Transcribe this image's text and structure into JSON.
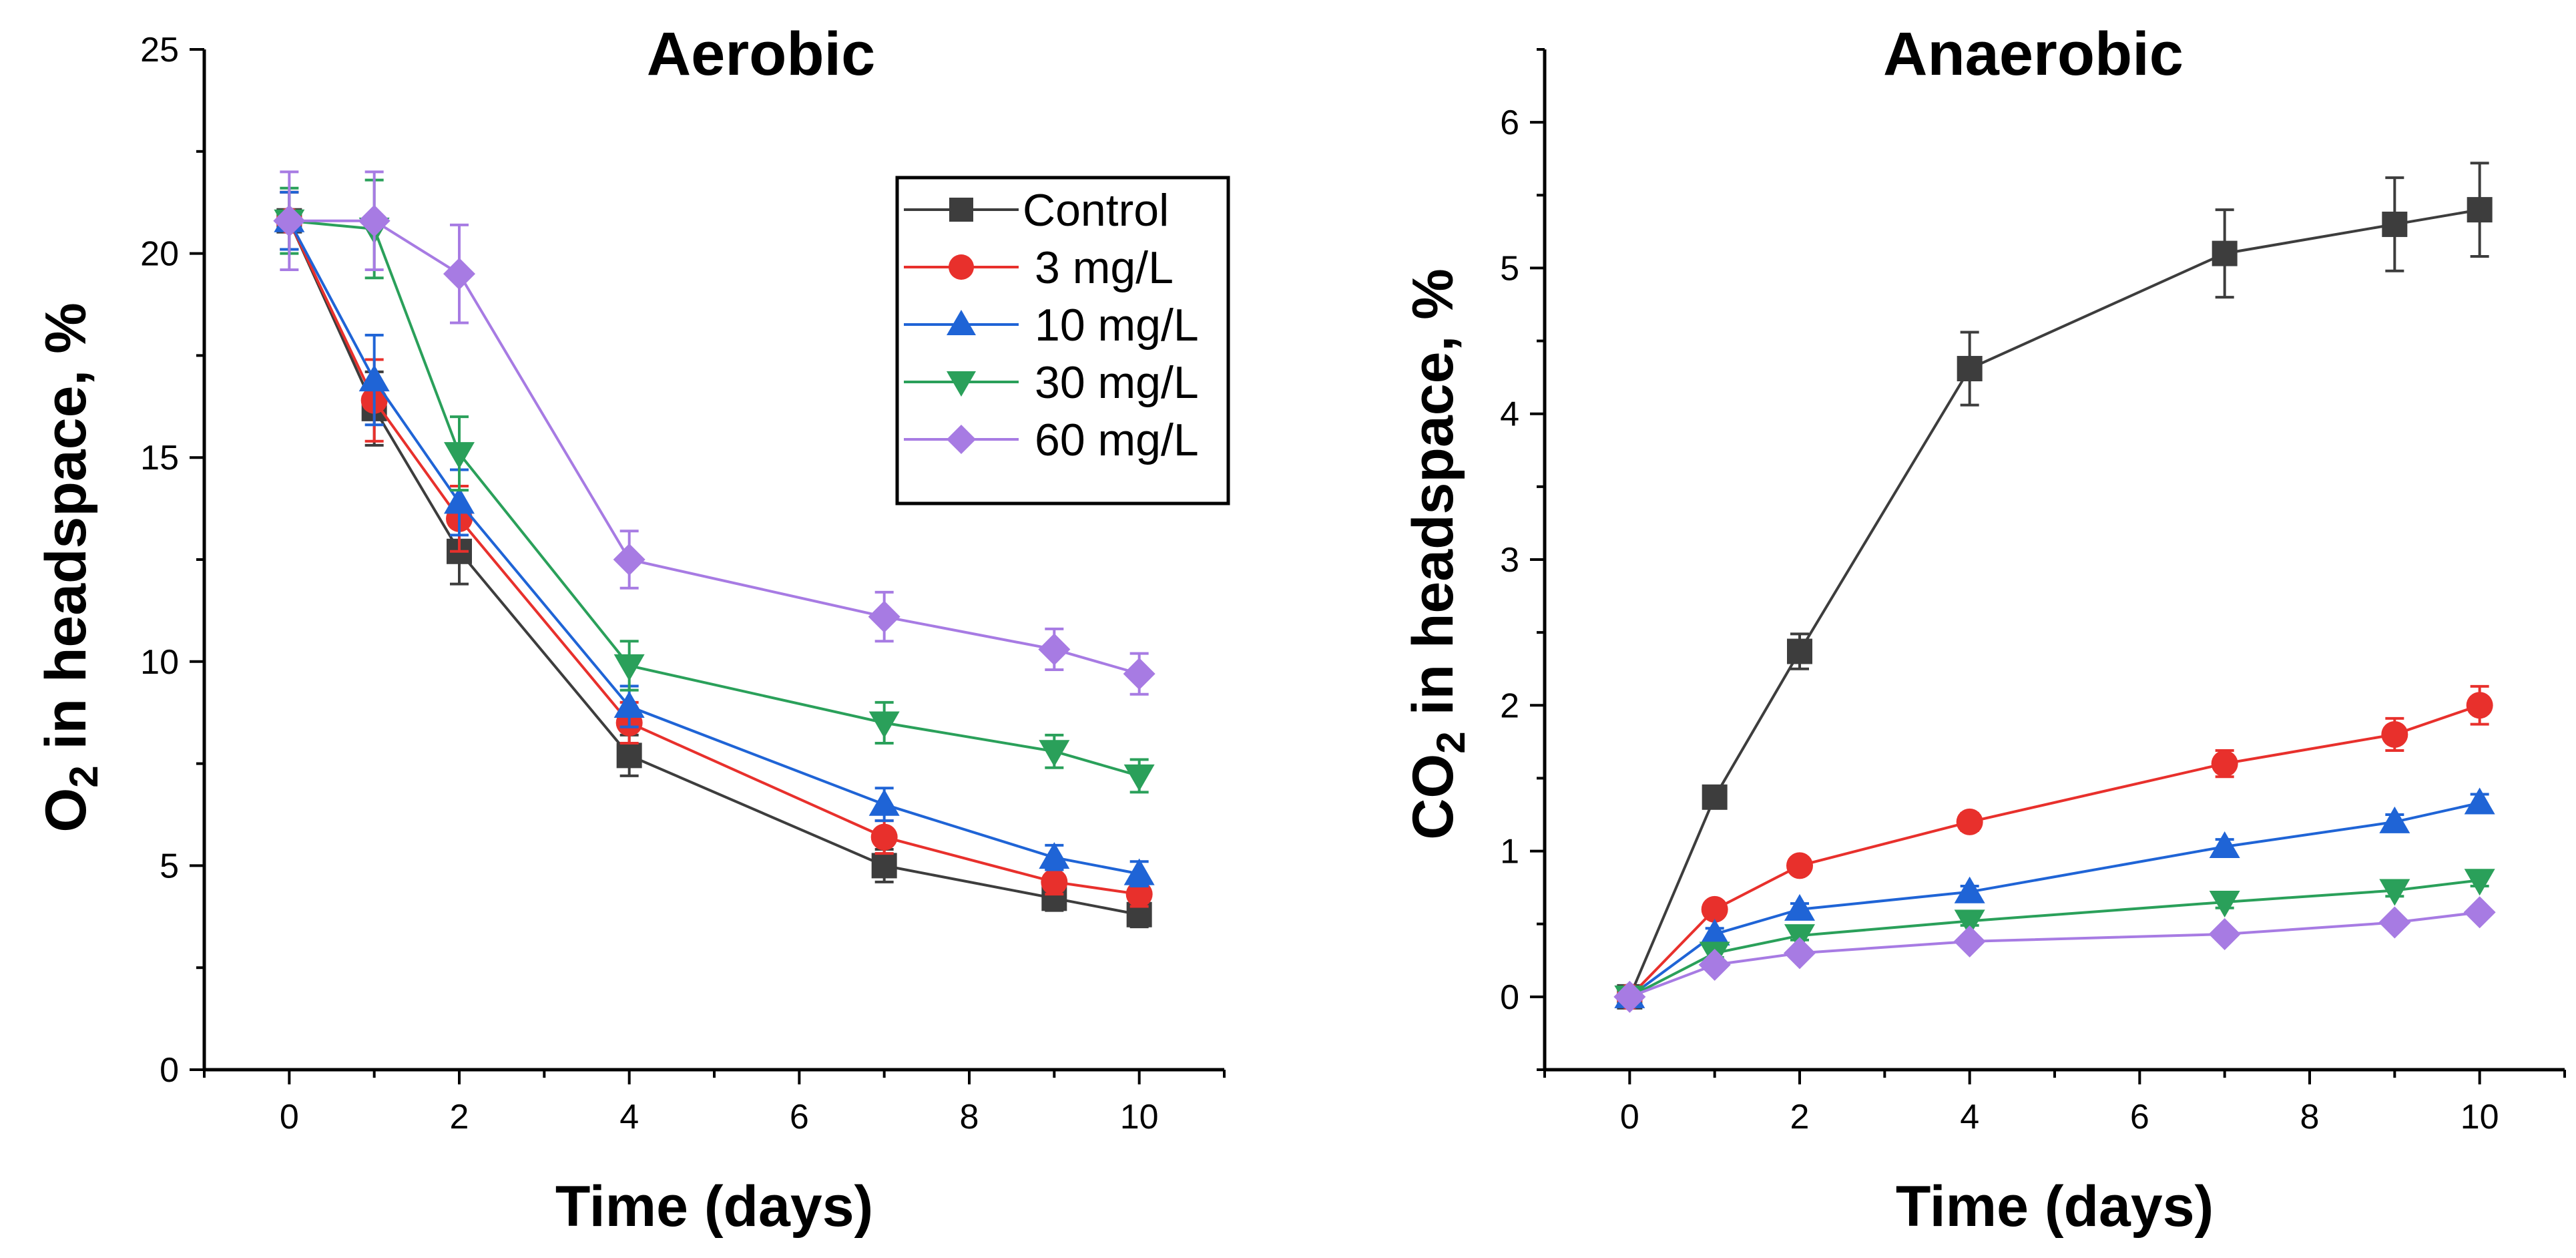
{
  "chart_data": [
    {
      "type": "line",
      "title": "Aerobic",
      "xlabel": "Time (days)",
      "ylabel": {
        "prefix": "O",
        "subscript": "2",
        "suffix": " in headspace, %"
      },
      "xlim": [
        -1,
        11
      ],
      "ylim": [
        0,
        25
      ],
      "xticks": [
        0,
        2,
        4,
        6,
        8,
        10
      ],
      "xtick_labels": [
        "0",
        "2",
        "4",
        "6",
        "8",
        "10"
      ],
      "yticks": [
        0,
        5,
        10,
        15,
        20,
        25
      ],
      "ytick_labels": [
        "0",
        "5",
        "10",
        "15",
        "20",
        "25"
      ],
      "x": [
        0,
        1,
        2,
        4,
        7,
        9,
        10
      ],
      "legend_position": "top-right",
      "series": [
        {
          "name": "Control",
          "color": "#3d3d3d",
          "marker": "square",
          "values": [
            20.8,
            16.2,
            12.7,
            7.7,
            5.0,
            4.2,
            3.8
          ],
          "errors": [
            0.7,
            0.9,
            0.8,
            0.5,
            0.4,
            0.3,
            0.3
          ]
        },
        {
          "name": "3 mg/L",
          "color": "#e8302c",
          "marker": "circle",
          "values": [
            20.8,
            16.4,
            13.5,
            8.5,
            5.7,
            4.6,
            4.3
          ],
          "errors": [
            0.7,
            1.0,
            0.8,
            0.5,
            0.4,
            0.3,
            0.3
          ]
        },
        {
          "name": "10 mg/L",
          "color": "#1f64d6",
          "marker": "triangle-up",
          "values": [
            20.8,
            16.9,
            13.9,
            8.9,
            6.5,
            5.2,
            4.8
          ],
          "errors": [
            0.7,
            1.1,
            0.8,
            0.5,
            0.4,
            0.3,
            0.3
          ]
        },
        {
          "name": "30 mg/L",
          "color": "#2aa05a",
          "marker": "triangle-down",
          "values": [
            20.8,
            20.6,
            15.1,
            9.9,
            8.5,
            7.8,
            7.2
          ],
          "errors": [
            0.8,
            1.2,
            0.9,
            0.6,
            0.5,
            0.4,
            0.4
          ]
        },
        {
          "name": "60 mg/L",
          "color": "#a77be3",
          "marker": "diamond",
          "values": [
            20.8,
            20.8,
            19.5,
            12.5,
            11.1,
            10.3,
            9.7
          ],
          "errors": [
            1.2,
            1.2,
            1.2,
            0.7,
            0.6,
            0.5,
            0.5
          ]
        }
      ]
    },
    {
      "type": "line",
      "title": "Anaerobic",
      "xlabel": "Time (days)",
      "ylabel": {
        "prefix": "CO",
        "subscript": "2",
        "suffix": " in headspace, %"
      },
      "xlim": [
        -1,
        11
      ],
      "ylim": [
        -0.5,
        6.5
      ],
      "xticks": [
        0,
        2,
        4,
        6,
        8,
        10
      ],
      "xtick_labels": [
        "0",
        "2",
        "4",
        "6",
        "8",
        "10"
      ],
      "yticks": [
        0,
        1,
        2,
        3,
        4,
        5,
        6
      ],
      "ytick_labels": [
        "0",
        "1",
        "2",
        "3",
        "4",
        "5",
        "6"
      ],
      "x": [
        0,
        1,
        2,
        4,
        7,
        9,
        10
      ],
      "series": [
        {
          "name": "Control",
          "color": "#3d3d3d",
          "marker": "square",
          "values": [
            0.0,
            1.37,
            2.37,
            4.31,
            5.1,
            5.3,
            5.4
          ],
          "errors": [
            0.03,
            0.06,
            0.12,
            0.25,
            0.3,
            0.32,
            0.32
          ]
        },
        {
          "name": "3 mg/L",
          "color": "#e8302c",
          "marker": "circle",
          "values": [
            0.0,
            0.6,
            0.9,
            1.2,
            1.6,
            1.8,
            2.0
          ],
          "errors": [
            0.03,
            0.04,
            0.05,
            0.06,
            0.09,
            0.11,
            0.13
          ]
        },
        {
          "name": "10 mg/L",
          "color": "#1f64d6",
          "marker": "triangle-up",
          "values": [
            0.0,
            0.43,
            0.6,
            0.72,
            1.03,
            1.2,
            1.33
          ],
          "errors": [
            0.03,
            0.04,
            0.04,
            0.04,
            0.05,
            0.05,
            0.06
          ]
        },
        {
          "name": "30 mg/L",
          "color": "#2aa05a",
          "marker": "triangle-down",
          "values": [
            0.0,
            0.3,
            0.42,
            0.52,
            0.65,
            0.73,
            0.8
          ],
          "errors": [
            0.03,
            0.03,
            0.03,
            0.03,
            0.04,
            0.04,
            0.04
          ]
        },
        {
          "name": "60 mg/L",
          "color": "#a77be3",
          "marker": "diamond",
          "values": [
            0.0,
            0.22,
            0.3,
            0.38,
            0.43,
            0.51,
            0.58
          ],
          "errors": [
            0.03,
            0.03,
            0.03,
            0.03,
            0.03,
            0.03,
            0.03
          ]
        }
      ]
    }
  ]
}
